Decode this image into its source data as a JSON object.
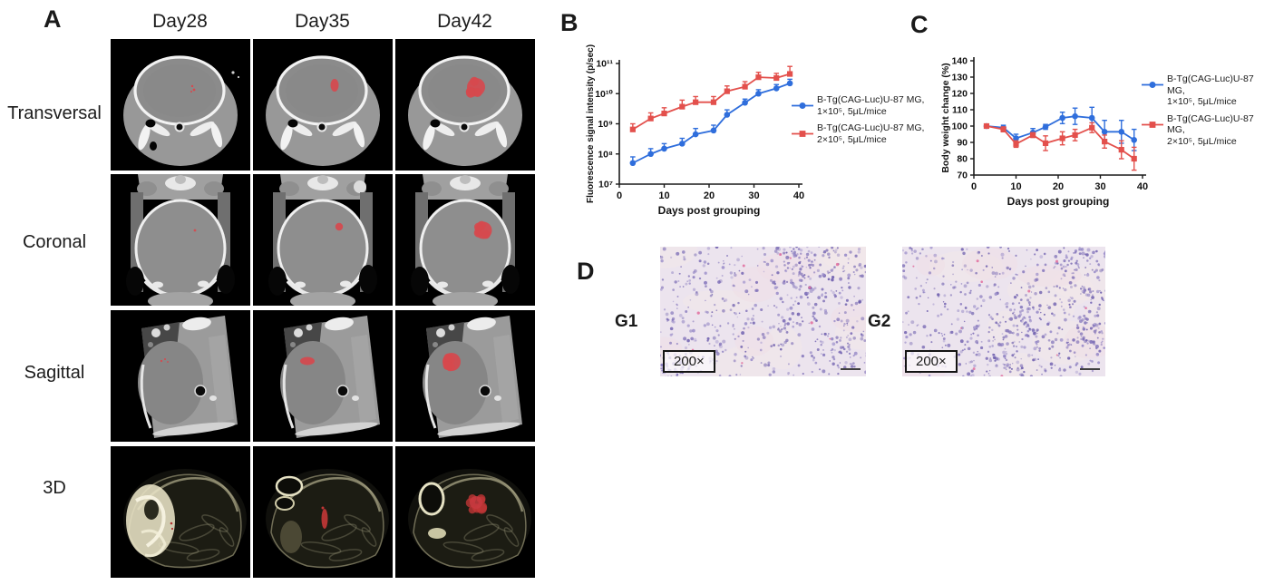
{
  "panels": {
    "a": {
      "label": "A",
      "columns": [
        "Day28",
        "Day35",
        "Day42"
      ],
      "rows": [
        "Transversal",
        "Coronal",
        "Sagittal",
        "3D"
      ]
    },
    "b": {
      "label": "B"
    },
    "c": {
      "label": "C"
    },
    "d": {
      "label": "D",
      "images": [
        {
          "group": "G1",
          "magnification": "200×"
        },
        {
          "group": "G2",
          "magnification": "200×"
        }
      ]
    }
  },
  "chart_data": [
    {
      "type": "line",
      "title": "",
      "xlabel": "Days post grouping",
      "ylabel": "Fluorescence signal intensity (p/sec)",
      "yscale": "log",
      "ylim": [
        10000000.0,
        100000000000.0
      ],
      "xlim": [
        0,
        40
      ],
      "xticks": [
        0,
        10,
        20,
        30,
        40
      ],
      "yticks": [
        {
          "value": 10000000.0,
          "label": "10⁷"
        },
        {
          "value": 100000000.0,
          "label": "10⁸"
        },
        {
          "value": 1000000000.0,
          "label": "10⁹"
        },
        {
          "value": 10000000000.0,
          "label": "10¹⁰"
        },
        {
          "value": 100000000000.0,
          "label": "10¹¹"
        }
      ],
      "x": [
        3,
        7,
        10,
        14,
        17,
        21,
        24,
        28,
        31,
        35,
        38
      ],
      "series": [
        {
          "name": "B-Tg(CAG-Luc)U-87 MG, 1×10⁵, 5μL/mice",
          "legend_lines": [
            "B-Tg(CAG-Luc)U-87 MG,",
            "1×10⁵, 5μL/mice"
          ],
          "color": "#2F6EDC",
          "marker": "circle",
          "values": [
            50000000.0,
            100000000.0,
            150000000.0,
            220000000.0,
            450000000.0,
            600000000.0,
            2000000000.0,
            5000000000.0,
            10000000000.0,
            15000000000.0,
            22000000000.0
          ],
          "err_up": [
            30000000.0,
            50000000.0,
            70000000.0,
            110000000.0,
            250000000.0,
            300000000.0,
            900000000.0,
            1600000000.0,
            3500000000.0,
            5000000000.0,
            8000000000.0
          ]
        },
        {
          "name": "B-Tg(CAG-Luc)U-87 MG, 2×10⁵, 5μL/mice",
          "legend_lines": [
            "B-Tg(CAG-Luc)U-87 MG,",
            "2×10⁵, 5μL/mice"
          ],
          "color": "#E3504C",
          "marker": "square",
          "values": [
            650000000.0,
            1500000000.0,
            2200000000.0,
            3700000000.0,
            5200000000.0,
            5200000000.0,
            12000000000.0,
            17000000000.0,
            35000000000.0,
            33000000000.0,
            45000000000.0
          ],
          "err_up": [
            350000000.0,
            800000000.0,
            1200000000.0,
            2400000000.0,
            2800000000.0,
            2800000000.0,
            6000000000.0,
            8000000000.0,
            16000000000.0,
            14000000000.0,
            35000000000.0
          ]
        }
      ]
    },
    {
      "type": "line",
      "title": "",
      "xlabel": "Days post grouping",
      "ylabel": "Body weight change (%)",
      "yscale": "linear",
      "ylim": [
        70,
        140
      ],
      "xlim": [
        0,
        40
      ],
      "xticks": [
        0,
        10,
        20,
        30,
        40
      ],
      "yticks": [
        {
          "value": 70,
          "label": "70"
        },
        {
          "value": 80,
          "label": "80"
        },
        {
          "value": 90,
          "label": "90"
        },
        {
          "value": 100,
          "label": "100"
        },
        {
          "value": 110,
          "label": "110"
        },
        {
          "value": 120,
          "label": "120"
        },
        {
          "value": 130,
          "label": "130"
        },
        {
          "value": 140,
          "label": "140"
        }
      ],
      "x": [
        3,
        7,
        10,
        14,
        17,
        21,
        24,
        28,
        31,
        35,
        38
      ],
      "series": [
        {
          "name": "B-Tg(CAG-Luc)U-87 MG, 1×10⁵, 5μL/mice",
          "legend_lines": [
            "B-Tg(CAG-Luc)U-87 MG,",
            "1×10⁵, 5μL/mice"
          ],
          "color": "#2F6EDC",
          "marker": "circle",
          "values": [
            100,
            99,
            92.5,
            96,
            99.5,
            105,
            106,
            105,
            96.5,
            96.5,
            91.5
          ],
          "err": [
            1,
            1.5,
            2.5,
            2.5,
            1.5,
            3.5,
            5,
            6.5,
            7,
            7,
            6.5
          ]
        },
        {
          "name": "B-Tg(CAG-Luc)U-87 MG, 2×10⁵, 5μL/mice",
          "legend_lines": [
            "B-Tg(CAG-Luc)U-87 MG,",
            "2×10⁵, 5μL/mice"
          ],
          "color": "#E3504C",
          "marker": "square",
          "values": [
            100,
            98,
            89,
            94.5,
            89.5,
            92.5,
            94.5,
            99,
            90.5,
            85.5,
            80
          ],
          "err": [
            1,
            1.5,
            2,
            1.5,
            4.5,
            4,
            3.5,
            3,
            4,
            5.5,
            7
          ]
        }
      ]
    }
  ],
  "colors": {
    "series_blue": "#2F6EDC",
    "series_red": "#E3504C",
    "tumor_red": "#D6494E",
    "axis": "#1a1a1a"
  }
}
